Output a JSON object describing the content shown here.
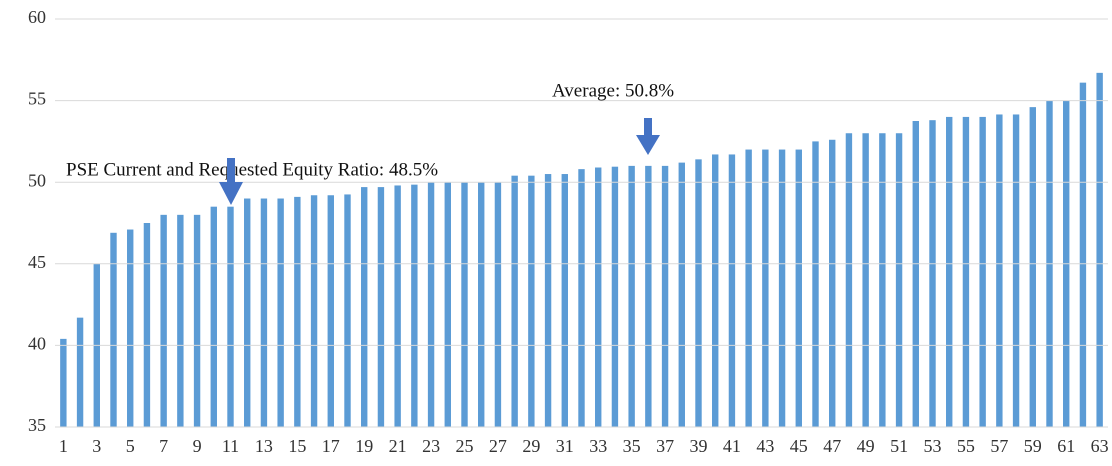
{
  "chart_data": {
    "type": "bar",
    "categories": [
      "1",
      null,
      "3",
      null,
      "5",
      null,
      "7",
      null,
      "9",
      null,
      "11",
      null,
      "13",
      null,
      "15",
      null,
      "17",
      null,
      "19",
      null,
      "21",
      null,
      "23",
      null,
      "25",
      null,
      "27",
      null,
      "29",
      null,
      "31",
      null,
      "33",
      null,
      "35",
      null,
      "37",
      null,
      "39",
      null,
      "41",
      null,
      "43",
      null,
      "45",
      null,
      "47",
      null,
      "49",
      null,
      "51",
      null,
      "53",
      null,
      "55",
      null,
      "57",
      null,
      "59",
      null,
      "61",
      null,
      "63"
    ],
    "values": [
      40.4,
      41.7,
      45.0,
      46.9,
      47.1,
      47.5,
      48.0,
      48.0,
      48.0,
      48.5,
      48.5,
      49.0,
      49.0,
      49.0,
      49.1,
      49.2,
      49.2,
      49.25,
      49.7,
      49.7,
      49.8,
      49.85,
      50.0,
      50.0,
      50.0,
      50.0,
      50.0,
      50.4,
      50.4,
      50.5,
      50.5,
      50.8,
      50.9,
      50.95,
      51.0,
      51.0,
      51.0,
      51.2,
      51.4,
      51.7,
      51.7,
      52.0,
      52.0,
      52.0,
      52.0,
      52.5,
      52.6,
      53.0,
      53.0,
      53.0,
      53.0,
      53.75,
      53.8,
      54.0,
      54.0,
      54.0,
      54.15,
      54.15,
      54.6,
      55.0,
      55.0,
      56.1,
      56.7
    ],
    "color": "#5b9bd5",
    "ylim": [
      35,
      60
    ],
    "yticks": [
      35,
      40,
      45,
      50,
      55,
      60
    ],
    "grid": true,
    "annotations": [
      "PSE Current and Requested Equity Ratio: 48.5%",
      "Average: 50.8%"
    ]
  }
}
